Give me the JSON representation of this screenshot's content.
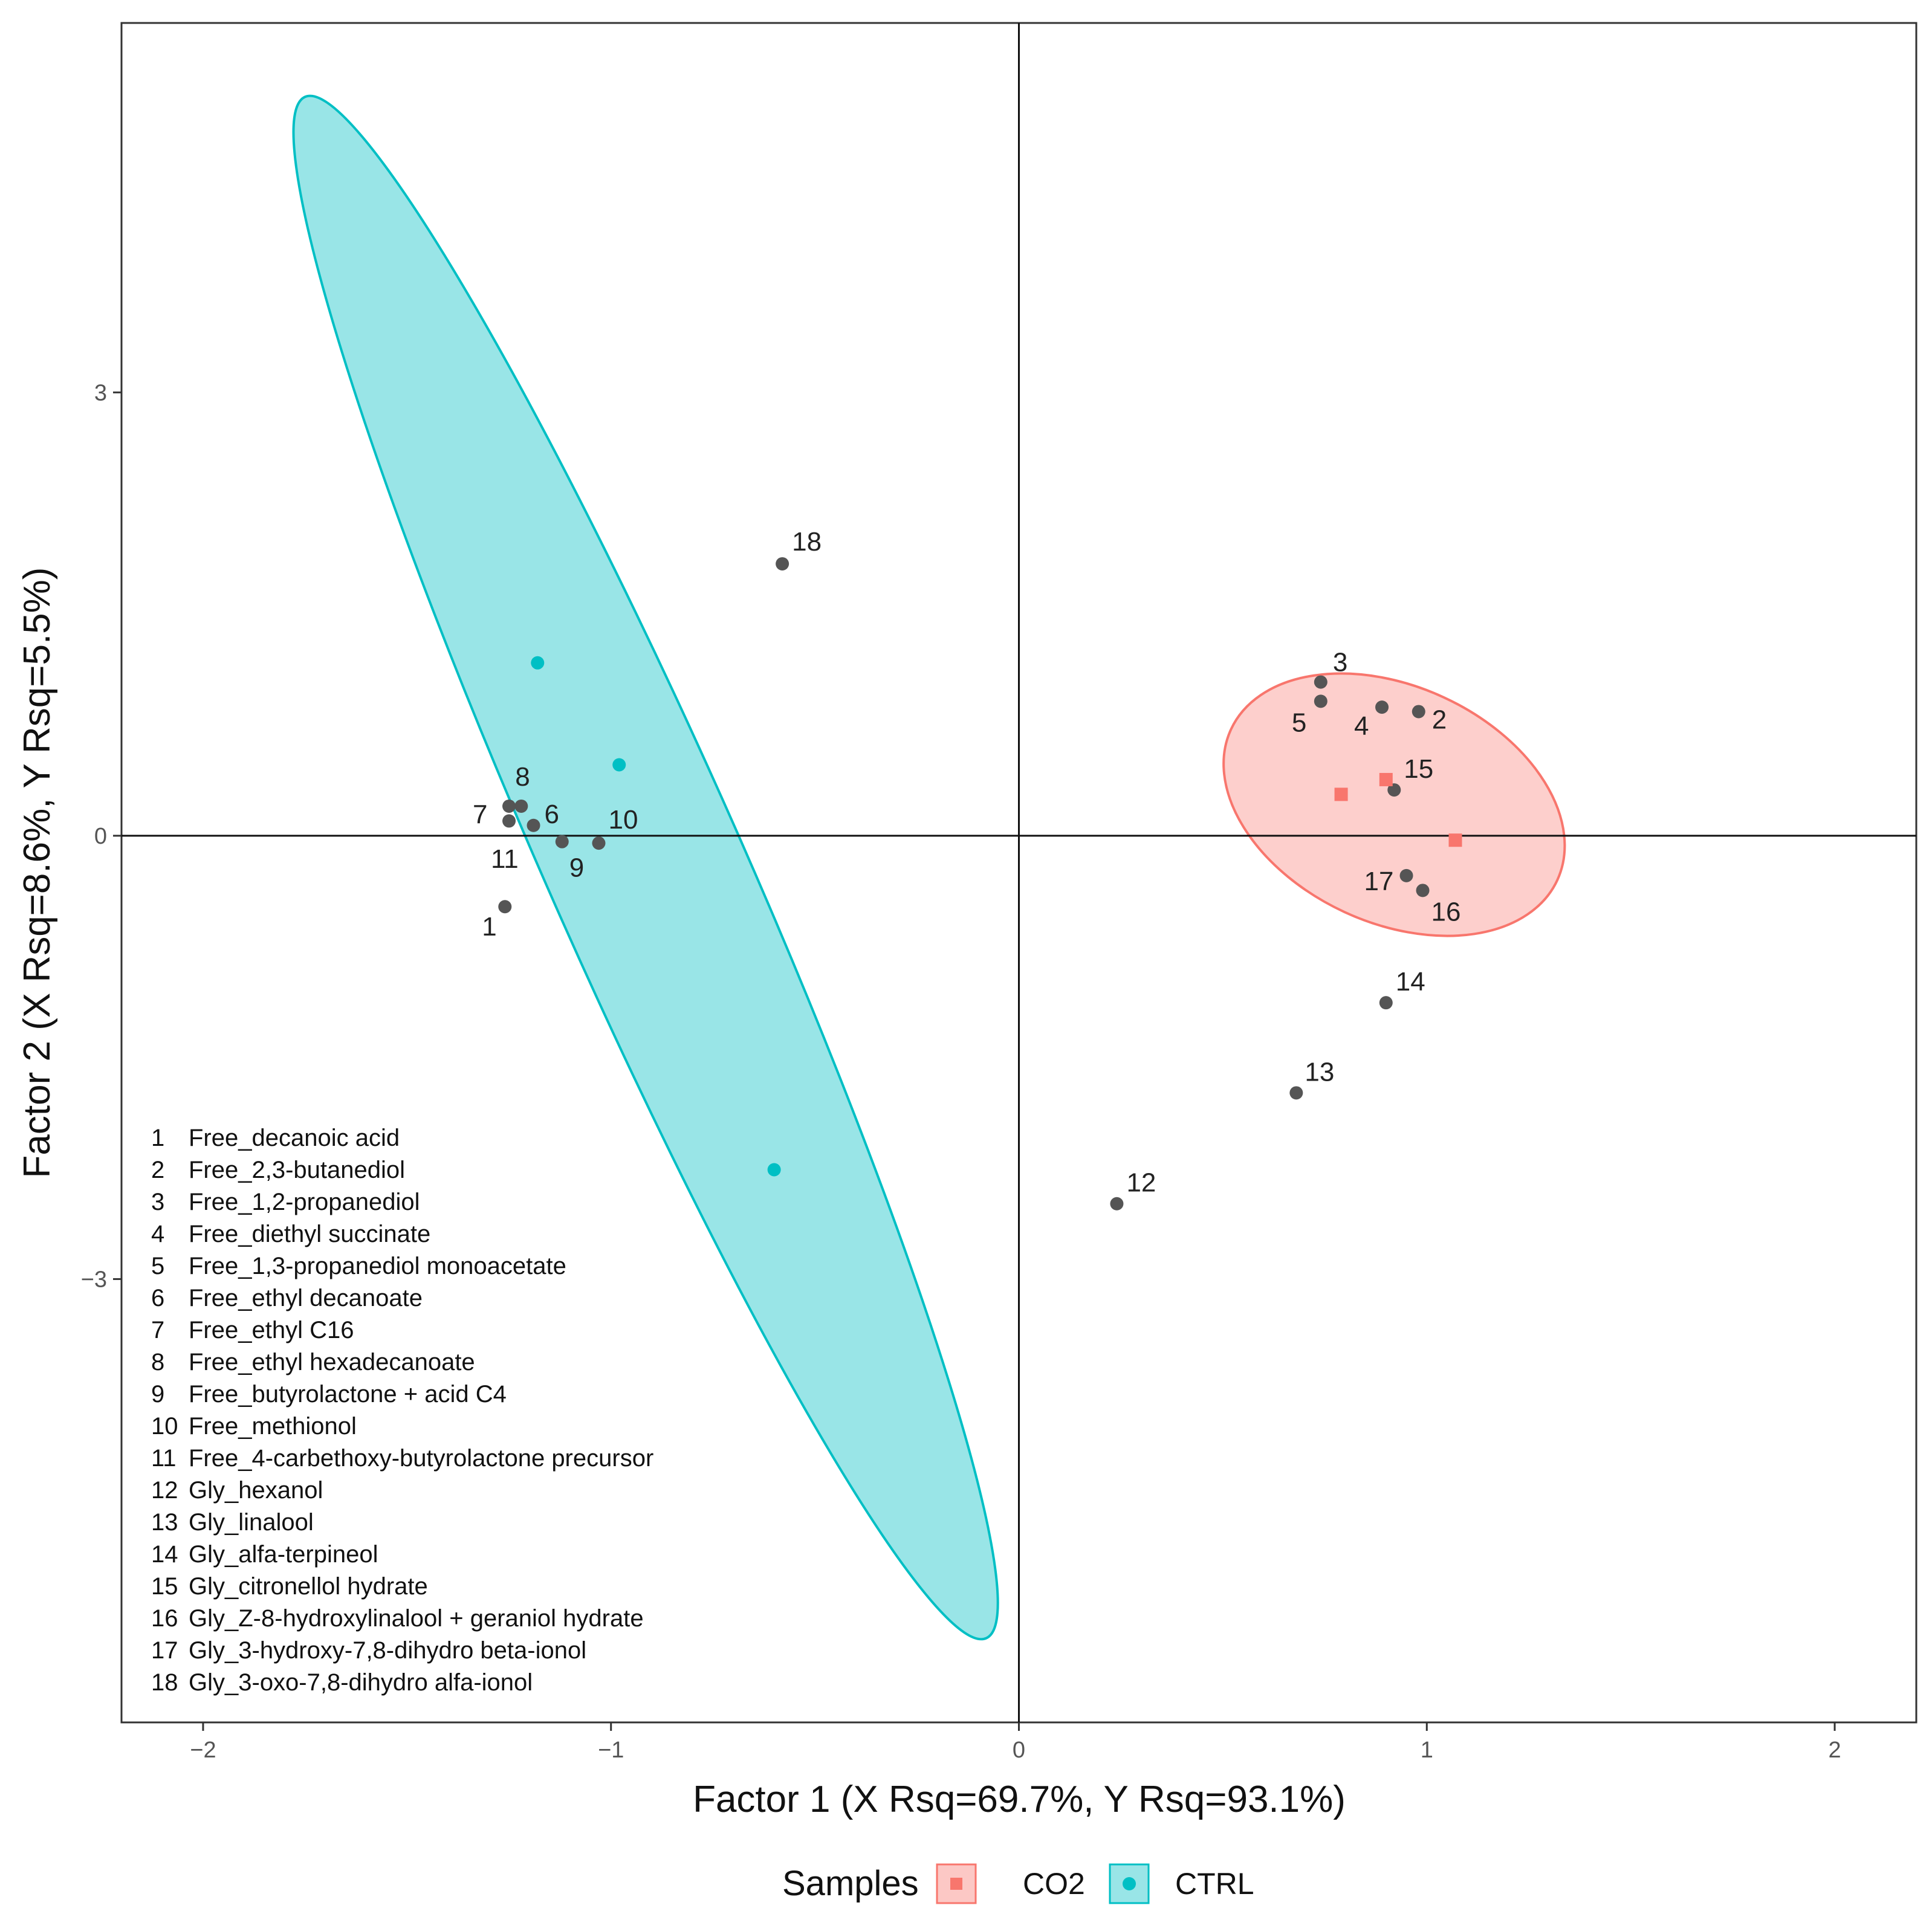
{
  "chart_data": {
    "type": "scatter",
    "title": "",
    "xlabel": "Factor 1 (X Rsq=69.7%, Y Rsq=93.1%)",
    "ylabel": "Factor 2 (X Rsq=8.6%,  Y Rsq=5.5%)",
    "xlim": [
      -2.2,
      2.2
    ],
    "ylim": [
      -6.0,
      5.5
    ],
    "x_ticks": [
      -2,
      -1,
      0,
      1,
      2
    ],
    "x_tick_labels": [
      "−2",
      "−1",
      "0",
      "1",
      "2"
    ],
    "y_ticks": [
      -3,
      0,
      3
    ],
    "y_tick_labels": [
      "−3",
      "0",
      "3"
    ],
    "reference_lines": {
      "x": 0,
      "y": 0
    },
    "colors": {
      "co2": "#F8766D",
      "ctrl": "#00BFC4",
      "variables": "#555555"
    },
    "variables": [
      {
        "id": "1",
        "x": -1.26,
        "y": -0.48
      },
      {
        "id": "2",
        "x": 0.98,
        "y": 0.84
      },
      {
        "id": "3",
        "x": 0.74,
        "y": 1.04
      },
      {
        "id": "4",
        "x": 0.89,
        "y": 0.87
      },
      {
        "id": "5",
        "x": 0.74,
        "y": 0.91
      },
      {
        "id": "6",
        "x": -1.19,
        "y": 0.07
      },
      {
        "id": "7",
        "x": -1.25,
        "y": 0.1
      },
      {
        "id": "8",
        "x": -1.22,
        "y": 0.2
      },
      {
        "id": "9",
        "x": -1.12,
        "y": -0.04
      },
      {
        "id": "10",
        "x": -1.03,
        "y": -0.05
      },
      {
        "id": "11",
        "x": -1.25,
        "y": 0.2
      },
      {
        "id": "12",
        "x": 0.24,
        "y": -2.49
      },
      {
        "id": "13",
        "x": 0.68,
        "y": -1.74
      },
      {
        "id": "14",
        "x": 0.9,
        "y": -1.13
      },
      {
        "id": "15",
        "x": 0.92,
        "y": 0.31
      },
      {
        "id": "16",
        "x": 0.99,
        "y": -0.37
      },
      {
        "id": "17",
        "x": 0.95,
        "y": -0.27
      },
      {
        "id": "18",
        "x": -0.58,
        "y": 1.84
      }
    ],
    "series": [
      {
        "name": "CO2",
        "marker": "square",
        "points": [
          {
            "x": 0.79,
            "y": 0.28
          },
          {
            "x": 0.9,
            "y": 0.38
          },
          {
            "x": 1.07,
            "y": -0.03
          }
        ],
        "ellipse": {
          "cx": 0.92,
          "cy": 0.21,
          "tip1": [
            0.52,
            0.72
          ],
          "tip2": [
            1.32,
            -0.3
          ],
          "minor_halfwidth": 0.29
        }
      },
      {
        "name": "CTRL",
        "marker": "circle",
        "points": [
          {
            "x": -1.18,
            "y": 1.17
          },
          {
            "x": -0.98,
            "y": 0.48
          },
          {
            "x": -0.6,
            "y": -2.26
          }
        ],
        "ellipse": {
          "cx": -0.92,
          "cy": 0.02,
          "tip1": [
            -1.75,
            5.0
          ],
          "tip2": [
            -0.08,
            -5.43
          ],
          "minor_halfwidth": 0.24
        }
      }
    ],
    "variable_legend": [
      {
        "num": "1",
        "name": "Free_decanoic acid"
      },
      {
        "num": "2",
        "name": "Free_2,3-butanediol"
      },
      {
        "num": "3",
        "name": "Free_1,2-propanediol"
      },
      {
        "num": "4",
        "name": "Free_diethyl succinate"
      },
      {
        "num": "5",
        "name": "Free_1,3-propanediol monoacetate"
      },
      {
        "num": "6",
        "name": "Free_ethyl decanoate"
      },
      {
        "num": "7",
        "name": "Free_ethyl C16"
      },
      {
        "num": "8",
        "name": "Free_ethyl hexadecanoate"
      },
      {
        "num": "9",
        "name": "Free_butyrolactone + acid C4"
      },
      {
        "num": "10",
        "name": "Free_methionol"
      },
      {
        "num": "11",
        "name": "Free_4-carbethoxy-butyrolactone precursor"
      },
      {
        "num": "12",
        "name": "Gly_hexanol"
      },
      {
        "num": "13",
        "name": "Gly_linalool"
      },
      {
        "num": "14",
        "name": "Gly_alfa-terpineol"
      },
      {
        "num": "15",
        "name": "Gly_citronellol hydrate"
      },
      {
        "num": "16",
        "name": "Gly_Z-8-hydroxylinalool + geraniol hydrate"
      },
      {
        "num": "17",
        "name": "Gly_3-hydroxy-7,8-dihydro beta-ionol"
      },
      {
        "num": "18",
        "name": "Gly_3-oxo-7,8-dihydro alfa-ionol"
      }
    ],
    "legend": {
      "title": "Samples",
      "position": "bottom",
      "items": [
        "CO2",
        "CTRL"
      ]
    }
  }
}
